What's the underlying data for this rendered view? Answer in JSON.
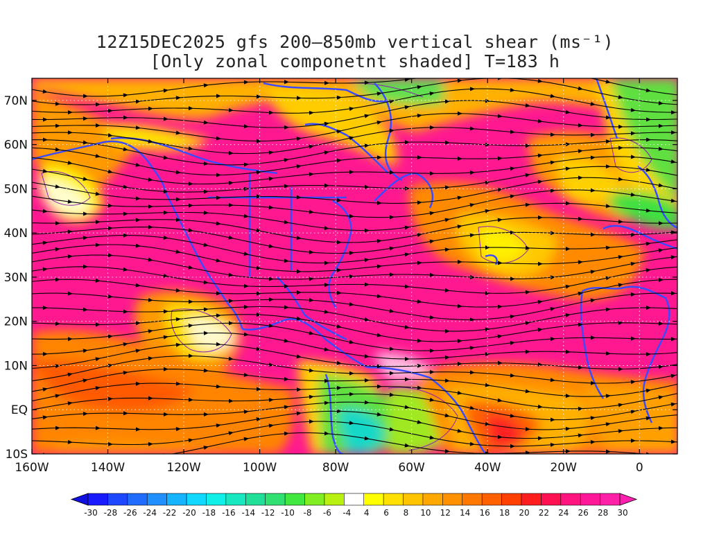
{
  "title_line1": "12Z15DEC2025 gfs 200–850mb vertical shear (ms⁻¹)",
  "title_line2": "[Only zonal componetnt shaded] T=183 h",
  "map": {
    "lat_labels": [
      "70N",
      "60N",
      "50N",
      "40N",
      "30N",
      "20N",
      "10N",
      "EQ",
      "10S"
    ],
    "lon_labels": [
      "160W",
      "140W",
      "120W",
      "100W",
      "80W",
      "60W",
      "40W",
      "20W",
      "0"
    ]
  },
  "colorbar": {
    "labels": [
      "-30",
      "-28",
      "-26",
      "-24",
      "-22",
      "-20",
      "-18",
      "-16",
      "-14",
      "-12",
      "-10",
      "-8",
      "-6",
      "-4",
      "4",
      "6",
      "8",
      "10",
      "12",
      "14",
      "16",
      "18",
      "20",
      "22",
      "24",
      "26",
      "28",
      "30"
    ],
    "colors": [
      "#1a1aff",
      "#1d48ff",
      "#1f6cff",
      "#2090ff",
      "#14b4ff",
      "#10d8ff",
      "#10f0e8",
      "#18e8c0",
      "#20e098",
      "#30e070",
      "#40e840",
      "#80ee20",
      "#b8f010",
      "#ffffff",
      "#ffff00",
      "#ffe000",
      "#ffc400",
      "#ffa800",
      "#ff9000",
      "#ff7800",
      "#ff6000",
      "#ff4000",
      "#ff1e1e",
      "#ff1050",
      "#ff1480",
      "#ff1898",
      "#ff20a8"
    ],
    "left_arrow_color": "#1010e0",
    "right_arrow_color": "#ff20b0"
  },
  "legend_colors": {
    "coastline": "#3a4bff",
    "contour": "#8b1fb0",
    "streamline": "#000000"
  }
}
